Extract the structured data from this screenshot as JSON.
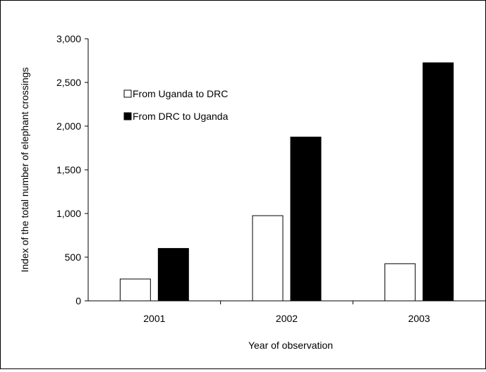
{
  "chart_data": {
    "type": "bar",
    "categories": [
      "2001",
      "2002",
      "2003"
    ],
    "series": [
      {
        "name": "From Uganda to DRC",
        "values": [
          250,
          975,
          425
        ],
        "fill": "#ffffff"
      },
      {
        "name": "From DRC to Uganda",
        "values": [
          600,
          1875,
          2725
        ],
        "fill": "#000000"
      }
    ],
    "xlabel": "Year of observation",
    "ylabel": "Index of the total number of elephant crossings",
    "ylim": [
      0,
      3000
    ],
    "yticks": [
      0,
      500,
      1000,
      1500,
      2000,
      2500,
      3000
    ],
    "ytick_labels": [
      "0",
      "500",
      "1,000",
      "1,500",
      "2,000",
      "2,500",
      "3,000"
    ],
    "grid": false,
    "legend_position": "upper-left"
  }
}
